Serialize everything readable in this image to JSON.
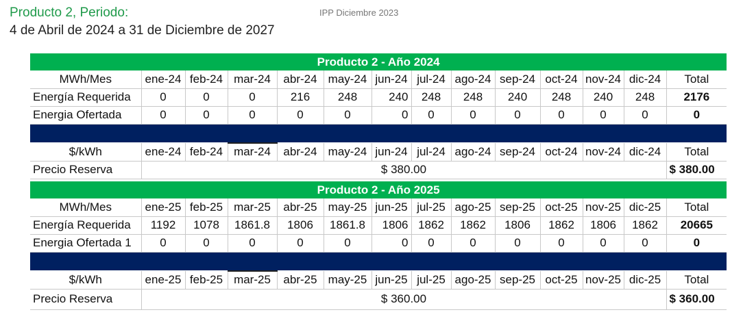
{
  "header": {
    "title": "Producto 2, Periodo:",
    "subtitle": "4 de Abril de 2024 a 31 de Diciembre de 2027",
    "ipp": "IPP Diciembre 2023"
  },
  "blocks": [
    {
      "title": "Producto 2 - Año 2024",
      "unit_label": "MWh/Mes",
      "months": [
        "ene-24",
        "feb-24",
        "mar-24",
        "abr-24",
        "may-24",
        "jun-24",
        "jul-24",
        "ago-24",
        "sep-24",
        "oct-24",
        "nov-24",
        "dic-24"
      ],
      "total_label": "Total",
      "rows": [
        {
          "label": "Energía Requerida",
          "values": [
            "0",
            "0",
            "0",
            "216",
            "248",
            "240",
            "248",
            "248",
            "240",
            "248",
            "240",
            "248"
          ],
          "total": "2176"
        },
        {
          "label": "Energia Ofertada",
          "values": [
            "0",
            "0",
            "0",
            "0",
            "0",
            "0",
            "0",
            "0",
            "0",
            "0",
            "0",
            "0"
          ],
          "total": "0"
        }
      ],
      "price_unit_label": "$/kWh",
      "price_label": "Precio Reserva",
      "price_value": "$ 380.00",
      "price_total": "$ 380.00"
    },
    {
      "title": "Producto 2 - Año 2025",
      "unit_label": "MWh/Mes",
      "months": [
        "ene-25",
        "feb-25",
        "mar-25",
        "abr-25",
        "may-25",
        "jun-25",
        "jul-25",
        "ago-25",
        "sep-25",
        "oct-25",
        "nov-25",
        "dic-25"
      ],
      "total_label": "Total",
      "rows": [
        {
          "label": "Energía Requerida",
          "values": [
            "1192",
            "1078",
            "1861.8",
            "1806",
            "1861.8",
            "1806",
            "1862",
            "1862",
            "1806",
            "1862",
            "1806",
            "1862"
          ],
          "total": "20665"
        },
        {
          "label": "Energia Ofertada 1",
          "values": [
            "0",
            "0",
            "0",
            "0",
            "0",
            "0",
            "0",
            "0",
            "0",
            "0",
            "0",
            "0"
          ],
          "total": "0"
        }
      ],
      "price_unit_label": "$/kWh",
      "price_label": "Precio Reserva",
      "price_value": "$ 360.00",
      "price_total": "$ 360.00"
    }
  ]
}
